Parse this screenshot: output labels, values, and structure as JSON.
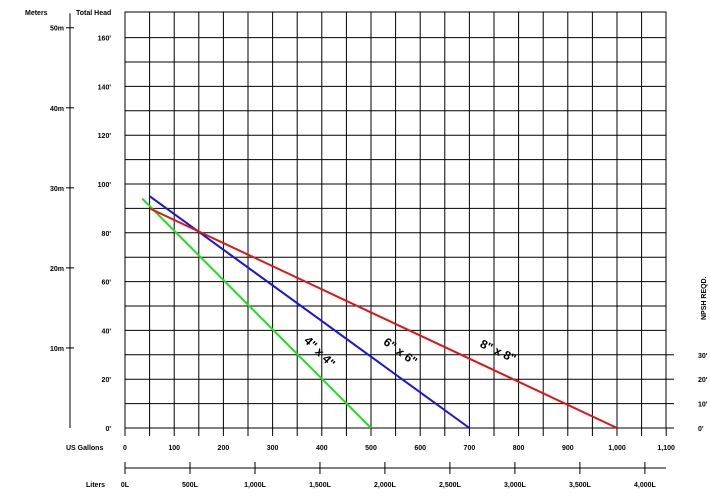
{
  "chart_data": {
    "type": "line",
    "title": "",
    "header_left": "Meters",
    "header_right": "Total Head",
    "xlabel": "US Gallons",
    "x2label": "Liters",
    "y2label": "NPSH REQD.",
    "xlim": [
      0,
      1100
    ],
    "ylim": [
      0,
      170
    ],
    "x_ticks": [
      {
        "v": 0,
        "label": "0"
      },
      {
        "v": 100,
        "label": "100"
      },
      {
        "v": 200,
        "label": "200"
      },
      {
        "v": 300,
        "label": "300"
      },
      {
        "v": 400,
        "label": "400"
      },
      {
        "v": 500,
        "label": "500"
      },
      {
        "v": 600,
        "label": "600"
      },
      {
        "v": 700,
        "label": "700"
      },
      {
        "v": 800,
        "label": "800"
      },
      {
        "v": 900,
        "label": "900"
      },
      {
        "v": 1000,
        "label": "1,000"
      },
      {
        "v": 1100,
        "label": "1,100"
      }
    ],
    "liters_ticks": [
      {
        "v": 0,
        "label": "0L"
      },
      {
        "v": 132.1,
        "label": "500L"
      },
      {
        "v": 264.2,
        "label": "1,000L"
      },
      {
        "v": 396.3,
        "label": "1,500L"
      },
      {
        "v": 528.3,
        "label": "2,000L"
      },
      {
        "v": 660.4,
        "label": "2,500L"
      },
      {
        "v": 792.5,
        "label": "3,000L"
      },
      {
        "v": 924.6,
        "label": "3,500L"
      },
      {
        "v": 1056.7,
        "label": "4,000L"
      }
    ],
    "feet_ticks": [
      {
        "v": 0,
        "label": "0'"
      },
      {
        "v": 20,
        "label": "20'"
      },
      {
        "v": 40,
        "label": "40'"
      },
      {
        "v": 60,
        "label": "60'"
      },
      {
        "v": 80,
        "label": "80'"
      },
      {
        "v": 100,
        "label": "100'"
      },
      {
        "v": 120,
        "label": "120'"
      },
      {
        "v": 140,
        "label": "140'"
      },
      {
        "v": 160,
        "label": "160'"
      }
    ],
    "meter_ticks": [
      {
        "v": 32.81,
        "label": "10m"
      },
      {
        "v": 65.62,
        "label": "20m"
      },
      {
        "v": 98.43,
        "label": "30m"
      },
      {
        "v": 131.23,
        "label": "40m"
      },
      {
        "v": 164.04,
        "label": "50m"
      }
    ],
    "npsh_ticks": [
      {
        "v": 0,
        "label": "0'"
      },
      {
        "v": 10,
        "label": "10'"
      },
      {
        "v": 20,
        "label": "20'"
      },
      {
        "v": 30,
        "label": "30'"
      }
    ],
    "series": [
      {
        "name": "4\" x 4\"",
        "color": "#22dd22",
        "points": [
          [
            35,
            94
          ],
          [
            500,
            0
          ]
        ],
        "label_at": [
          390,
          30
        ]
      },
      {
        "name": "6\" x 6\"",
        "color": "#1515dd",
        "points": [
          [
            50,
            95
          ],
          [
            700,
            0
          ]
        ],
        "label_at": [
          555,
          30
        ]
      },
      {
        "name": "8\" x 8\"",
        "color": "#dd1515",
        "points": [
          [
            50,
            90
          ],
          [
            1000,
            0
          ]
        ],
        "label_at": [
          755,
          30
        ]
      }
    ]
  }
}
